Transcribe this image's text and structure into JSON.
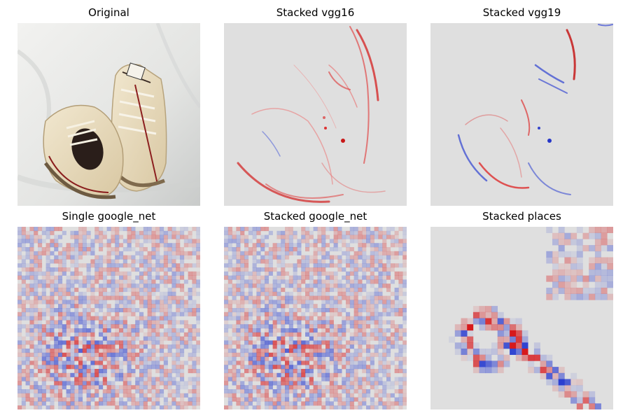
{
  "panels": [
    {
      "title": "Original",
      "kind": "photo"
    },
    {
      "title": "Stacked vgg16",
      "kind": "saliency-edges"
    },
    {
      "title": "Stacked vgg19",
      "kind": "saliency-edges"
    },
    {
      "title": "Single google_net",
      "kind": "saliency-noise"
    },
    {
      "title": "Stacked google_net",
      "kind": "saliency-noise"
    },
    {
      "title": "Stacked places",
      "kind": "saliency-blocky"
    }
  ],
  "colors": {
    "positive": "#d7191c",
    "negative": "#2c3fd0",
    "neutral": "#dedede",
    "canvas": "#ffffff"
  }
}
